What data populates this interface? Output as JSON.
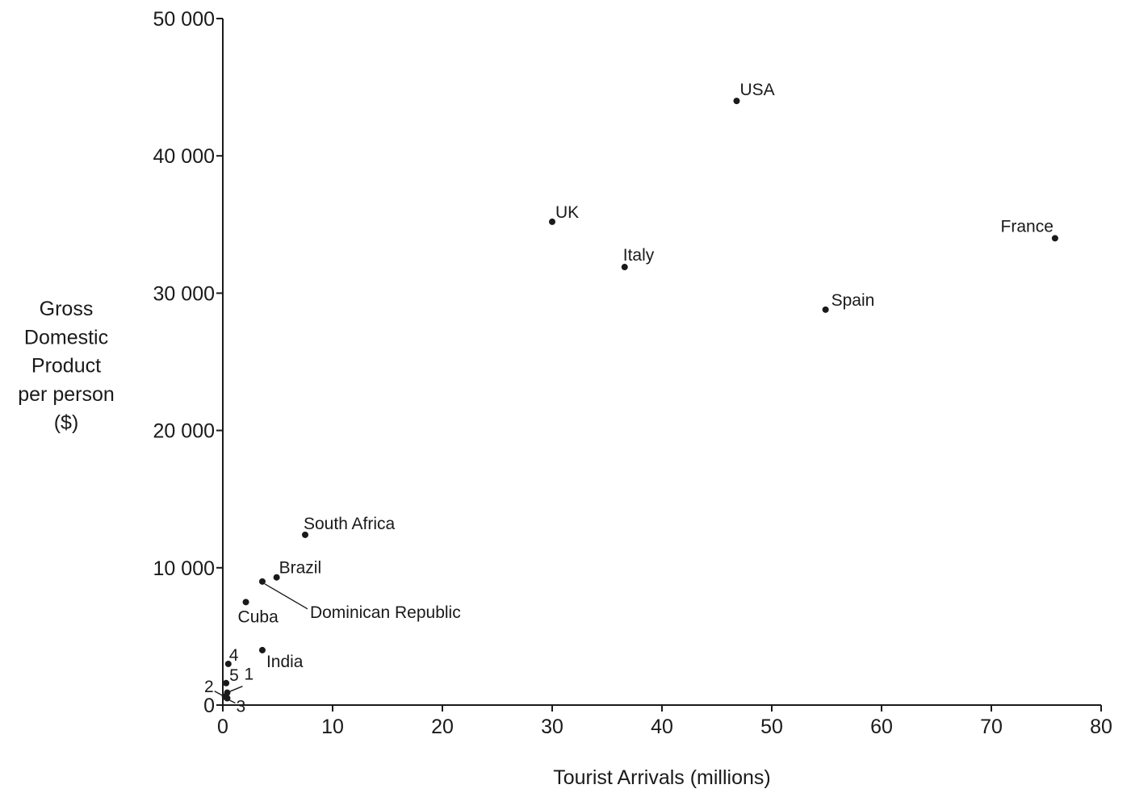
{
  "chart_data": {
    "type": "scatter",
    "title": "",
    "xlabel": "Tourist Arrivals (millions)",
    "ylabel_lines": [
      "Gross",
      "Domestic",
      "Product",
      "per person",
      "($)"
    ],
    "xlim": [
      0,
      80
    ],
    "ylim": [
      0,
      50000
    ],
    "x_ticks": [
      0,
      10,
      20,
      30,
      40,
      50,
      60,
      70,
      80
    ],
    "x_tick_labels": [
      "0",
      "10",
      "20",
      "30",
      "40",
      "50",
      "60",
      "70",
      "80"
    ],
    "y_ticks": [
      0,
      10000,
      20000,
      30000,
      40000,
      50000
    ],
    "y_tick_labels": [
      "0",
      "10 000",
      "20 000",
      "30 000",
      "40 000",
      "50 000"
    ],
    "grid": false,
    "points": [
      {
        "label": "USA",
        "x": 46.8,
        "y": 44000
      },
      {
        "label": "UK",
        "x": 30.0,
        "y": 35200
      },
      {
        "label": "France",
        "x": 75.8,
        "y": 34000
      },
      {
        "label": "Italy",
        "x": 36.6,
        "y": 31900
      },
      {
        "label": "Spain",
        "x": 54.9,
        "y": 28800
      },
      {
        "label": "South Africa",
        "x": 7.5,
        "y": 12400
      },
      {
        "label": "Brazil",
        "x": 4.9,
        "y": 9300
      },
      {
        "label": "Dominican Republic",
        "x": 3.6,
        "y": 9000
      },
      {
        "label": "Cuba",
        "x": 2.1,
        "y": 7500
      },
      {
        "label": "India",
        "x": 3.6,
        "y": 4000
      },
      {
        "label": "4",
        "x": 0.5,
        "y": 3000
      },
      {
        "label": "5",
        "x": 0.3,
        "y": 1600
      },
      {
        "label": "1",
        "x": 0.4,
        "y": 900
      },
      {
        "label": "2",
        "x": 0.2,
        "y": 600
      },
      {
        "label": "3",
        "x": 0.4,
        "y": 500
      }
    ]
  }
}
